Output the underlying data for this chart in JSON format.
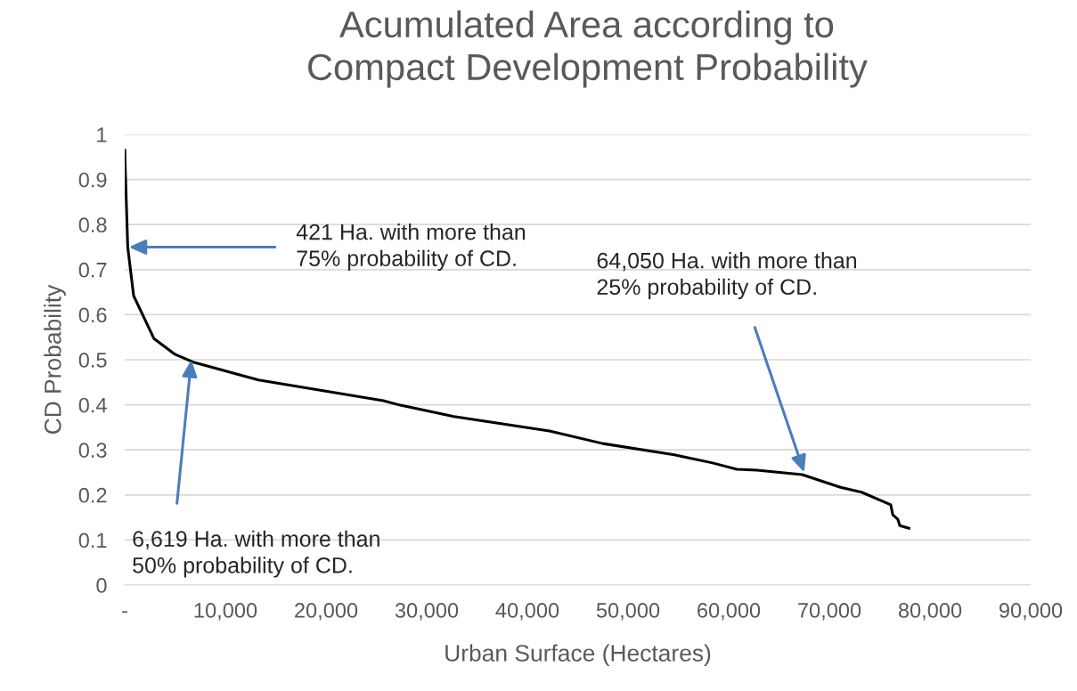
{
  "chart_data": {
    "type": "line",
    "title": "Acumulated Area according to\nCompact Development Probability",
    "xlabel": "Urban Surface (Hectares)",
    "ylabel": "CD Probability",
    "series": [
      {
        "color": "#000000",
        "x": [
          0,
          300,
          885,
          2900,
          5000,
          6900,
          13300,
          25700,
          27400,
          32700,
          42200,
          47500,
          54600,
          58400,
          60800,
          62800,
          67300,
          71100,
          73200,
          76100,
          76300,
          76800,
          77000,
          77900
        ],
        "values": [
          0.965,
          0.75,
          0.642,
          0.547,
          0.512,
          0.494,
          0.455,
          0.409,
          0.399,
          0.374,
          0.342,
          0.314,
          0.289,
          0.271,
          0.257,
          0.255,
          0.245,
          0.217,
          0.206,
          0.178,
          0.156,
          0.146,
          0.132,
          0.126
        ]
      }
    ],
    "xlim": [
      0,
      90000
    ],
    "ylim": [
      0,
      1
    ],
    "xticks": [
      {
        "value": 0,
        "label": "-"
      },
      {
        "value": 10000,
        "label": "10,000"
      },
      {
        "value": 20000,
        "label": "20,000"
      },
      {
        "value": 30000,
        "label": "30,000"
      },
      {
        "value": 40000,
        "label": "40,000"
      },
      {
        "value": 50000,
        "label": "50,000"
      },
      {
        "value": 60000,
        "label": "60,000"
      },
      {
        "value": 70000,
        "label": "70,000"
      },
      {
        "value": 80000,
        "label": "80,000"
      },
      {
        "value": 90000,
        "label": "90,000"
      }
    ],
    "yticks": [
      0,
      0.1,
      0.2,
      0.3,
      0.4,
      0.5,
      0.6,
      0.7,
      0.8,
      0.9,
      1
    ],
    "grid": "y",
    "marker": "none",
    "line_style": "solid",
    "annotations": [
      {
        "text": "421 Ha. with more than\n75% probability of CD.",
        "x": 421,
        "y": 0.75
      },
      {
        "text": "6,619 Ha. with more than\n50% probability of CD.",
        "x": 6619,
        "y": 0.5
      },
      {
        "text": "64,050 Ha. with more than\n25% probability of CD.",
        "x": 67500,
        "y": 0.25
      }
    ]
  }
}
